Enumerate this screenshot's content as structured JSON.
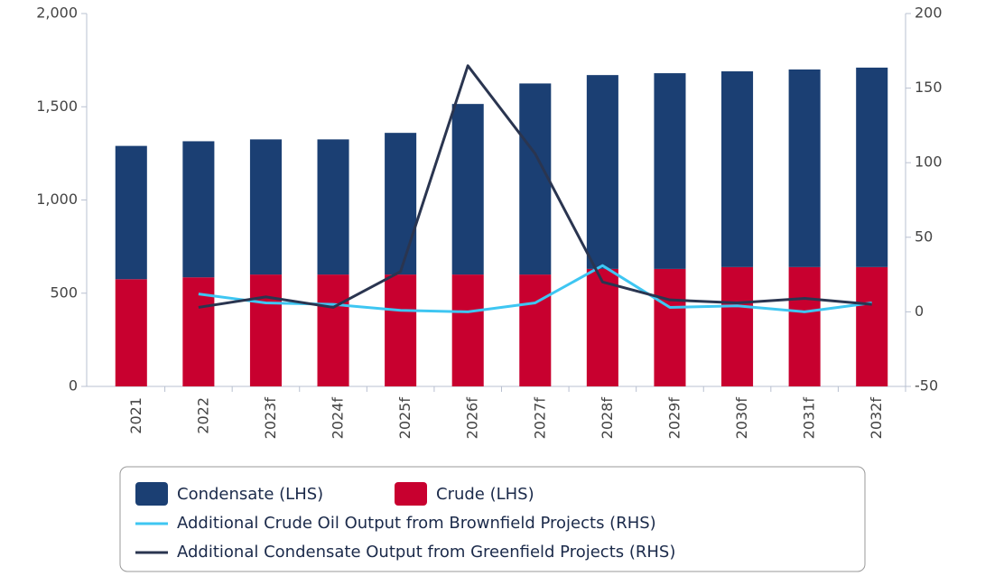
{
  "chart_data": {
    "type": "bar",
    "categories": [
      "2021",
      "2022",
      "2023f",
      "2024f",
      "2025f",
      "2026f",
      "2027f",
      "2028f",
      "2029f",
      "2030f",
      "2031f",
      "2032f"
    ],
    "series": [
      {
        "name": "Condensate (LHS)",
        "color": "#1b3f73",
        "stack": "bottom-second",
        "values": [
          715,
          730,
          725,
          725,
          760,
          915,
          1025,
          1040,
          1050,
          1050,
          1060,
          1070
        ]
      },
      {
        "name": "Crude (LHS)",
        "color": "#c8002f",
        "stack": "bottom-first",
        "values": [
          575,
          585,
          600,
          600,
          600,
          600,
          600,
          630,
          630,
          640,
          640,
          640
        ]
      },
      {
        "name": "Additional Crude Oil Output from Brownfield Projects (RHS)",
        "color": "#3ec6f2",
        "type": "line",
        "axis": "y2",
        "values": [
          null,
          12,
          6,
          5,
          1,
          0,
          6,
          31,
          3,
          4,
          0,
          6
        ]
      },
      {
        "name": "Additional Condensate Output from Greenfield Projects (RHS)",
        "color": "#2a3550",
        "type": "line",
        "axis": "y2",
        "values": [
          null,
          3,
          10,
          3,
          27,
          165,
          106,
          20,
          8,
          6,
          9,
          5
        ]
      }
    ],
    "ylim": [
      0,
      2000
    ],
    "yticks": [
      0,
      500,
      {
        "value": 1000,
        "label": "1,000"
      },
      {
        "value": 1500,
        "label": "1,500"
      },
      {
        "value": 2000,
        "label": "2,000"
      }
    ],
    "y2lim": [
      -50,
      200
    ],
    "y2ticks": [
      -50,
      0,
      50,
      100,
      150,
      200
    ]
  }
}
